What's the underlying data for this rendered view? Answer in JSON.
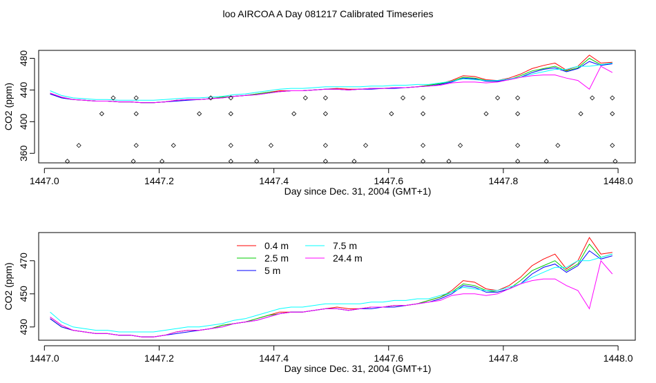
{
  "title": "loo AIRCOA A  Day 081217  Calibrated Timeseries",
  "colors": {
    "0.4 m": "#ff0000",
    "2.5 m": "#00cc00",
    "5 m": "#0000ff",
    "7.5 m": "#00ffff",
    "24.4 m": "#ff00ff"
  },
  "chart_data": [
    {
      "type": "line",
      "xlabel": "Day since Dec. 31, 2004 (GMT+1)",
      "ylabel": "CO2 (ppm)",
      "xticks": [
        "1447.0",
        "1447.2",
        "1447.4",
        "1447.6",
        "1447.8",
        "1448.0"
      ],
      "yticks": [
        "360",
        "400",
        "440",
        "480"
      ],
      "xlim": [
        1446.99,
        1448.03
      ],
      "ylim": [
        348,
        490
      ],
      "x": [
        1447.01,
        1447.03,
        1447.05,
        1447.07,
        1447.09,
        1447.11,
        1447.13,
        1447.15,
        1447.17,
        1447.19,
        1447.21,
        1447.23,
        1447.25,
        1447.27,
        1447.29,
        1447.31,
        1447.33,
        1447.35,
        1447.37,
        1447.39,
        1447.41,
        1447.43,
        1447.45,
        1447.47,
        1447.49,
        1447.51,
        1447.53,
        1447.55,
        1447.57,
        1447.59,
        1447.61,
        1447.63,
        1447.65,
        1447.67,
        1447.69,
        1447.71,
        1447.73,
        1447.75,
        1447.77,
        1447.79,
        1447.81,
        1447.83,
        1447.85,
        1447.87,
        1447.89,
        1447.91,
        1447.93,
        1447.95,
        1447.97,
        1447.99
      ],
      "series": [
        {
          "name": "0.4 m",
          "values": [
            436,
            431,
            428,
            427,
            426,
            426,
            425,
            425,
            424,
            424,
            425,
            427,
            428,
            428,
            429,
            431,
            432,
            433,
            435,
            437,
            439,
            439,
            439,
            440,
            441,
            442,
            441,
            441,
            442,
            442,
            443,
            443,
            444,
            446,
            448,
            452,
            458,
            457,
            453,
            452,
            455,
            460,
            467,
            471,
            474,
            465,
            470,
            484,
            474,
            475
          ]
        },
        {
          "name": "2.5 m",
          "values": [
            435,
            430,
            428,
            427,
            426,
            426,
            425,
            425,
            424,
            424,
            425,
            427,
            428,
            428,
            429,
            431,
            432,
            433,
            435,
            437,
            438,
            439,
            439,
            440,
            441,
            441,
            440,
            441,
            442,
            442,
            443,
            443,
            444,
            446,
            448,
            451,
            456,
            455,
            452,
            451,
            453,
            458,
            464,
            467,
            470,
            464,
            468,
            480,
            472,
            474
          ]
        },
        {
          "name": "5 m",
          "values": [
            435,
            430,
            428,
            427,
            426,
            426,
            425,
            425,
            424,
            424,
            425,
            426,
            427,
            428,
            429,
            430,
            432,
            433,
            434,
            436,
            438,
            439,
            439,
            440,
            441,
            441,
            440,
            441,
            441,
            442,
            442,
            443,
            444,
            445,
            447,
            450,
            455,
            454,
            451,
            451,
            453,
            456,
            462,
            466,
            468,
            463,
            467,
            476,
            471,
            473
          ]
        },
        {
          "name": "7.5 m",
          "values": [
            439,
            433,
            430,
            429,
            428,
            428,
            427,
            427,
            427,
            427,
            428,
            429,
            430,
            430,
            431,
            432,
            434,
            435,
            437,
            439,
            441,
            442,
            442,
            443,
            444,
            444,
            444,
            444,
            445,
            445,
            446,
            446,
            447,
            447,
            449,
            451,
            454,
            453,
            452,
            452,
            454,
            456,
            460,
            463,
            466,
            466,
            470,
            470,
            472,
            474
          ]
        },
        {
          "name": "24.4 m",
          "values": [
            436,
            431,
            428,
            427,
            426,
            426,
            425,
            425,
            424,
            424,
            425,
            427,
            428,
            428,
            429,
            430,
            432,
            433,
            434,
            436,
            438,
            439,
            439,
            440,
            441,
            441,
            440,
            441,
            442,
            442,
            443,
            443,
            444,
            445,
            446,
            449,
            450,
            450,
            449,
            450,
            453,
            456,
            458,
            459,
            459,
            455,
            452,
            441,
            470,
            462
          ]
        }
      ],
      "markers": [
        {
          "x": 1447.04,
          "y": 350
        },
        {
          "x": 1447.06,
          "y": 370
        },
        {
          "x": 1447.1,
          "y": 410
        },
        {
          "x": 1447.12,
          "y": 430
        },
        {
          "x": 1447.155,
          "y": 350
        },
        {
          "x": 1447.16,
          "y": 370
        },
        {
          "x": 1447.16,
          "y": 410
        },
        {
          "x": 1447.16,
          "y": 430
        },
        {
          "x": 1447.205,
          "y": 350
        },
        {
          "x": 1447.225,
          "y": 370
        },
        {
          "x": 1447.27,
          "y": 410
        },
        {
          "x": 1447.29,
          "y": 430
        },
        {
          "x": 1447.325,
          "y": 430
        },
        {
          "x": 1447.325,
          "y": 410
        },
        {
          "x": 1447.325,
          "y": 370
        },
        {
          "x": 1447.325,
          "y": 350
        },
        {
          "x": 1447.37,
          "y": 350
        },
        {
          "x": 1447.395,
          "y": 370
        },
        {
          "x": 1447.435,
          "y": 410
        },
        {
          "x": 1447.455,
          "y": 430
        },
        {
          "x": 1447.49,
          "y": 350
        },
        {
          "x": 1447.49,
          "y": 370
        },
        {
          "x": 1447.49,
          "y": 410
        },
        {
          "x": 1447.49,
          "y": 430
        },
        {
          "x": 1447.54,
          "y": 350
        },
        {
          "x": 1447.56,
          "y": 370
        },
        {
          "x": 1447.605,
          "y": 410
        },
        {
          "x": 1447.625,
          "y": 430
        },
        {
          "x": 1447.66,
          "y": 430
        },
        {
          "x": 1447.66,
          "y": 410
        },
        {
          "x": 1447.66,
          "y": 370
        },
        {
          "x": 1447.66,
          "y": 350
        },
        {
          "x": 1447.705,
          "y": 350
        },
        {
          "x": 1447.725,
          "y": 370
        },
        {
          "x": 1447.77,
          "y": 410
        },
        {
          "x": 1447.79,
          "y": 430
        },
        {
          "x": 1447.825,
          "y": 430
        },
        {
          "x": 1447.825,
          "y": 410
        },
        {
          "x": 1447.825,
          "y": 370
        },
        {
          "x": 1447.825,
          "y": 350
        },
        {
          "x": 1447.875,
          "y": 350
        },
        {
          "x": 1447.895,
          "y": 370
        },
        {
          "x": 1447.935,
          "y": 410
        },
        {
          "x": 1447.955,
          "y": 430
        },
        {
          "x": 1447.99,
          "y": 430
        },
        {
          "x": 1447.99,
          "y": 410
        },
        {
          "x": 1447.99,
          "y": 370
        },
        {
          "x": 1447.995,
          "y": 350
        }
      ]
    },
    {
      "type": "line",
      "xlabel": "Day since Dec. 31, 2004 (GMT+1)",
      "ylabel": "CO2 (ppm)",
      "xticks": [
        "1447.0",
        "1447.2",
        "1447.4",
        "1447.6",
        "1447.8",
        "1448.0"
      ],
      "yticks": [
        "430",
        "450",
        "470"
      ],
      "xlim": [
        1446.99,
        1448.03
      ],
      "ylim": [
        422,
        487
      ],
      "legend": [
        "0.4 m",
        "2.5 m",
        "5 m",
        "7.5 m",
        "24.4 m"
      ],
      "x": [
        1447.01,
        1447.03,
        1447.05,
        1447.07,
        1447.09,
        1447.11,
        1447.13,
        1447.15,
        1447.17,
        1447.19,
        1447.21,
        1447.23,
        1447.25,
        1447.27,
        1447.29,
        1447.31,
        1447.33,
        1447.35,
        1447.37,
        1447.39,
        1447.41,
        1447.43,
        1447.45,
        1447.47,
        1447.49,
        1447.51,
        1447.53,
        1447.55,
        1447.57,
        1447.59,
        1447.61,
        1447.63,
        1447.65,
        1447.67,
        1447.69,
        1447.71,
        1447.73,
        1447.75,
        1447.77,
        1447.79,
        1447.81,
        1447.83,
        1447.85,
        1447.87,
        1447.89,
        1447.91,
        1447.93,
        1447.95,
        1447.97,
        1447.99
      ],
      "series": [
        {
          "name": "0.4 m",
          "values": [
            436,
            431,
            428,
            427,
            426,
            426,
            425,
            425,
            424,
            424,
            425,
            427,
            428,
            428,
            429,
            431,
            432,
            433,
            435,
            437,
            439,
            439,
            439,
            440,
            441,
            442,
            441,
            441,
            442,
            442,
            443,
            443,
            444,
            446,
            448,
            452,
            458,
            457,
            453,
            452,
            455,
            460,
            467,
            471,
            474,
            465,
            470,
            484,
            474,
            475
          ]
        },
        {
          "name": "2.5 m",
          "values": [
            435,
            430,
            428,
            427,
            426,
            426,
            425,
            425,
            424,
            424,
            425,
            427,
            428,
            428,
            429,
            431,
            432,
            433,
            435,
            437,
            438,
            439,
            439,
            440,
            441,
            441,
            440,
            441,
            442,
            442,
            443,
            443,
            444,
            446,
            448,
            451,
            456,
            455,
            452,
            451,
            453,
            458,
            464,
            467,
            470,
            464,
            468,
            480,
            472,
            474
          ]
        },
        {
          "name": "5 m",
          "values": [
            435,
            430,
            428,
            427,
            426,
            426,
            425,
            425,
            424,
            424,
            425,
            426,
            427,
            428,
            429,
            430,
            432,
            433,
            434,
            436,
            438,
            439,
            439,
            440,
            441,
            441,
            440,
            441,
            441,
            442,
            442,
            443,
            444,
            445,
            447,
            450,
            455,
            454,
            451,
            451,
            453,
            456,
            462,
            466,
            468,
            463,
            467,
            476,
            471,
            473
          ]
        },
        {
          "name": "7.5 m",
          "values": [
            439,
            433,
            430,
            429,
            428,
            428,
            427,
            427,
            427,
            427,
            428,
            429,
            430,
            430,
            431,
            432,
            434,
            435,
            437,
            439,
            441,
            442,
            442,
            443,
            444,
            444,
            444,
            444,
            445,
            445,
            446,
            446,
            447,
            447,
            449,
            451,
            454,
            453,
            452,
            452,
            454,
            456,
            460,
            463,
            466,
            466,
            470,
            470,
            472,
            474
          ]
        },
        {
          "name": "24.4 m",
          "values": [
            436,
            431,
            428,
            427,
            426,
            426,
            425,
            425,
            424,
            424,
            425,
            427,
            428,
            428,
            429,
            430,
            432,
            433,
            434,
            436,
            438,
            439,
            439,
            440,
            441,
            441,
            440,
            441,
            442,
            442,
            443,
            443,
            444,
            445,
            446,
            449,
            450,
            450,
            449,
            450,
            453,
            456,
            458,
            459,
            459,
            455,
            452,
            441,
            470,
            462
          ]
        }
      ]
    }
  ]
}
